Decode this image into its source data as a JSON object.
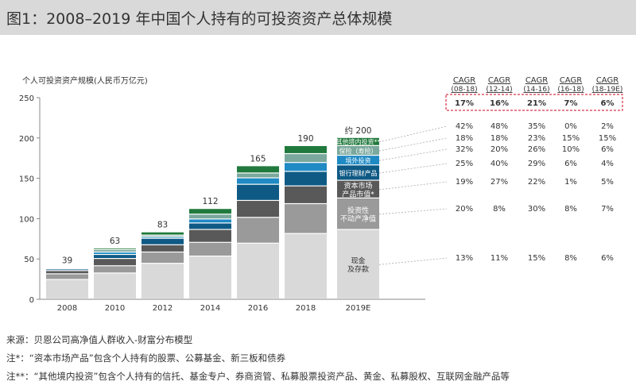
{
  "header": {
    "title": "图1：2008–2019 年中国个人持有的可投资资产总体规模"
  },
  "chart_data": {
    "type": "bar",
    "stacked": true,
    "title": "图1：2008–2019 年中国个人持有的可投资资产总体规模",
    "ylabel": "个人可投资资产规模(人民币万亿元)",
    "ylim": [
      0,
      250
    ],
    "yticks": [
      0,
      50,
      100,
      150,
      200,
      250
    ],
    "categories": [
      "2008",
      "2010",
      "2012",
      "2014",
      "2016",
      "2018",
      "2019E"
    ],
    "totals": [
      39,
      63,
      83,
      112,
      165,
      190,
      200
    ],
    "total_labels": [
      "39",
      "63",
      "83",
      "112",
      "165",
      "190",
      "约 200"
    ],
    "series": [
      {
        "name": "现金及存款",
        "label": [
          "现金",
          "及存款"
        ],
        "color": "#d9d9d9",
        "values": [
          24,
          32,
          44,
          53,
          69,
          81,
          86
        ]
      },
      {
        "name": "投资性不动产净值",
        "label": [
          "投资性",
          "不动产净值"
        ],
        "color": "#9a9a9a",
        "values": [
          7,
          9,
          14,
          17,
          32,
          37,
          39
        ]
      },
      {
        "name": "资本市场产品市值*",
        "label": [
          "资本市场",
          "产品市值*"
        ],
        "color": "#595959",
        "values": [
          4,
          9,
          9,
          16,
          21,
          22,
          22
        ]
      },
      {
        "name": "银行理财产品",
        "label": [
          "银行理财产品"
        ],
        "color": "#0f5a85",
        "values": [
          2,
          5,
          8,
          8,
          20,
          18,
          19
        ]
      },
      {
        "name": "境外投资",
        "label": [
          "境外投资"
        ],
        "color": "#1f8ac4",
        "values": [
          0.5,
          3,
          2,
          5,
          8,
          11,
          12
        ]
      },
      {
        "name": "保险（寿险）",
        "label": [
          "保险（寿险）"
        ],
        "color": "#7aa89c",
        "values": [
          1,
          3,
          2,
          6,
          6,
          11,
          12
        ]
      },
      {
        "name": "其他境内投资**",
        "label": [
          "其他境内投资**"
        ],
        "color": "#217a3d",
        "values": [
          0.5,
          2,
          4,
          7,
          9,
          10,
          10
        ]
      }
    ]
  },
  "cagr": {
    "headers": [
      {
        "line1": "CAGR",
        "line2": "(08-18)"
      },
      {
        "line1": "CAGR",
        "line2": "(12-14)"
      },
      {
        "line1": "CAGR",
        "line2": "(14-16)"
      },
      {
        "line1": "CAGR",
        "line2": "(16-18)"
      },
      {
        "line1": "CAGR",
        "line2": "(18-19E)"
      }
    ],
    "total": [
      "17%",
      "16%",
      "21%",
      "7%",
      "6%"
    ],
    "rows": [
      [
        "42%",
        "48%",
        "35%",
        "0%",
        "2%"
      ],
      [
        "18%",
        "18%",
        "23%",
        "15%",
        "15%"
      ],
      [
        "32%",
        "20%",
        "26%",
        "10%",
        "6%"
      ],
      [
        "25%",
        "40%",
        "29%",
        "6%",
        "4%"
      ],
      [
        "19%",
        "27%",
        "22%",
        "1%",
        "5%"
      ],
      [
        "20%",
        "8%",
        "30%",
        "8%",
        "7%"
      ],
      [
        "13%",
        "11%",
        "15%",
        "8%",
        "6%"
      ]
    ]
  },
  "notes": {
    "source": "来源：贝恩公司高净值人群收入-财富分布模型",
    "note1": "注*：“资本市场产品”包含个人持有的股票、公募基金、新三板和债券",
    "note2": "注**：“其他境内投资”包含个人持有的信托、基金专户、券商资管、私募股票投资产品、黄金、私募股权、互联网金融产品等"
  },
  "colors": {
    "accent_red": "#d0021b",
    "axis": "#888888",
    "title_bg": "#d9d9d9"
  }
}
